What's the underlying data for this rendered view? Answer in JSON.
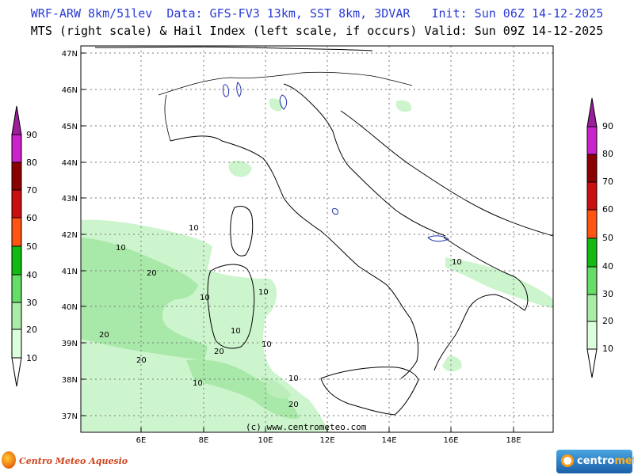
{
  "header": {
    "title_line1": "WRF-ARW 8km/51lev  Data: GFS-FV3 13km, SST 8km, 3DVAR   Init: Sun 06Z 14-12-2025",
    "title_line2": "MTS (right scale) & Hail Index (left scale, if occurs) Valid: Sun 09Z 14-12-2025"
  },
  "map": {
    "lon_labels": [
      "6E",
      "8E",
      "10E",
      "12E",
      "14E",
      "16E",
      "18E"
    ],
    "lat_labels": [
      "47N",
      "46N",
      "45N",
      "44N",
      "43N",
      "42N",
      "41N",
      "40N",
      "39N",
      "38N",
      "37N"
    ],
    "copyright": "(c) www.centrometeo.com",
    "contour_labels": [
      "10",
      "10",
      "20",
      "10",
      "20",
      "20",
      "10",
      "10",
      "20",
      "10",
      "10",
      "10",
      "20",
      "10"
    ],
    "colors": {
      "land_fill": "#ffffff",
      "mts_light": "#cdf5cd",
      "mts_mid": "#a8e8a8",
      "coast": "#000000",
      "lakes": "#2233aa"
    }
  },
  "left_scale": {
    "title": "Hail Index",
    "labels": [
      "90",
      "80",
      "70",
      "60",
      "50",
      "40",
      "30",
      "20",
      "10"
    ],
    "colors": [
      "#9b1f9b",
      "#cc22cc",
      "#8b0000",
      "#c81010",
      "#ff5511",
      "#11bb11",
      "#66dd66",
      "#a8eea8",
      "#dcffdc"
    ]
  },
  "right_scale": {
    "title": "MTS",
    "labels": [
      "90",
      "80",
      "70",
      "60",
      "50",
      "40",
      "30",
      "20",
      "10"
    ],
    "colors": [
      "#9b1f9b",
      "#cc22cc",
      "#8b0000",
      "#c81010",
      "#ff5511",
      "#11bb11",
      "#66dd66",
      "#a8eea8",
      "#dcffdc"
    ]
  },
  "logos": {
    "left": "Centro Meteo Aquesio",
    "right_a": "centro",
    "right_b": "meteo"
  }
}
